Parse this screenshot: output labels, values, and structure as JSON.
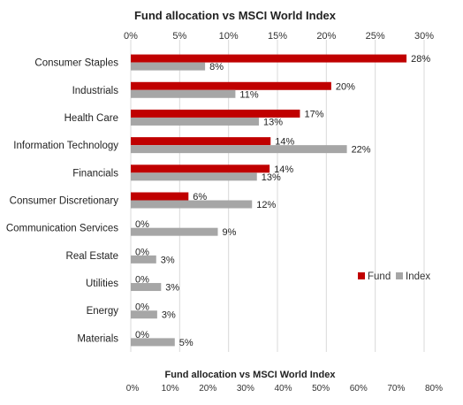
{
  "chart_data": [
    {
      "type": "bar",
      "orientation": "horizontal",
      "title": "Fund allocation vs MSCI World Index",
      "categories": [
        "Consumer Staples",
        "Industrials",
        "Health Care",
        "Information Technology",
        "Financials",
        "Consumer Discretionary",
        "Communication Services",
        "Real Estate",
        "Utilities",
        "Energy",
        "Materials"
      ],
      "series": [
        {
          "name": "Fund",
          "color": "#c00000",
          "values": [
            28.2,
            20.5,
            17.3,
            14.3,
            14.2,
            5.9,
            0,
            0,
            0,
            0,
            0
          ],
          "labels": [
            "28%",
            "20%",
            "17%",
            "14%",
            "14%",
            "6%",
            "0%",
            "0%",
            "0%",
            "0%",
            "0%"
          ]
        },
        {
          "name": "Index",
          "color": "#a6a6a6",
          "values": [
            7.6,
            10.7,
            13.1,
            22.1,
            12.9,
            12.4,
            8.9,
            2.6,
            3.1,
            2.7,
            4.5
          ],
          "labels": [
            "8%",
            "11%",
            "13%",
            "22%",
            "13%",
            "12%",
            "9%",
            "3%",
            "3%",
            "3%",
            "5%"
          ]
        }
      ],
      "x_ticks": [
        "0%",
        "5%",
        "10%",
        "15%",
        "20%",
        "25%",
        "30%"
      ],
      "xlim": [
        0,
        30
      ],
      "x_axis_position": "top",
      "grid": true,
      "legend_position": "right"
    },
    {
      "type": "bar",
      "orientation": "horizontal",
      "title": "Fund allocation vs MSCI World Index",
      "x_ticks": [
        "0%",
        "10%",
        "20%",
        "30%",
        "40%",
        "50%",
        "60%",
        "70%",
        "80%"
      ],
      "xlim": [
        0,
        80
      ],
      "note": "partially visible"
    }
  ]
}
